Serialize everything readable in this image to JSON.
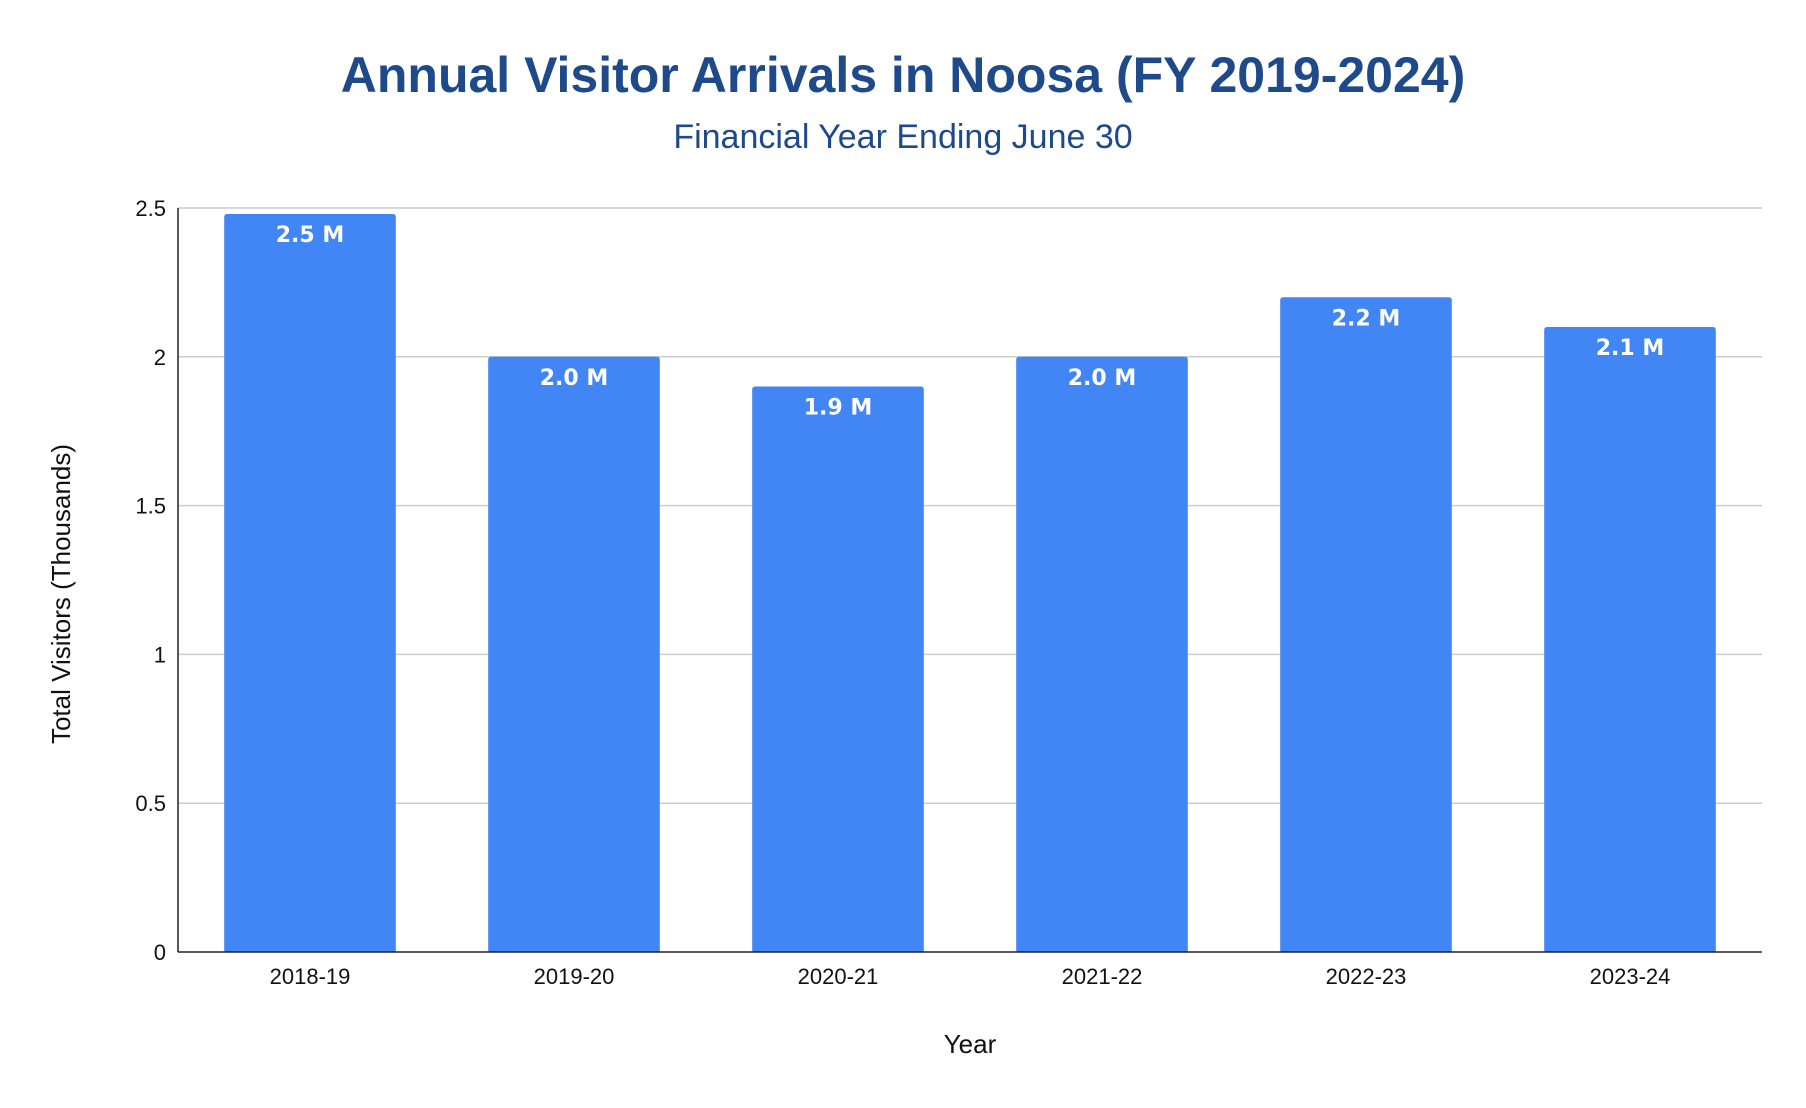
{
  "chart_data": {
    "type": "bar",
    "title": "Annual Visitor Arrivals in Noosa (FY 2019-2024)",
    "subtitle": "Financial Year Ending June 30",
    "xlabel": "Year",
    "ylabel": "Total Visitors (Thousands)",
    "categories": [
      "2018-19",
      "2019-20",
      "2020-21",
      "2021-22",
      "2022-23",
      "2023-24"
    ],
    "values": [
      2.48,
      2.0,
      1.9,
      2.0,
      2.2,
      2.1
    ],
    "data_labels": [
      "2.5 M",
      "2.0 M",
      "1.9 M",
      "2.0 M",
      "2.2 M",
      "2.1 M"
    ],
    "ylim": [
      0,
      2.5
    ],
    "yticks": [
      "0",
      "0.5",
      "1",
      "1.5",
      "2",
      "2.5"
    ],
    "grid": true,
    "legend": "none",
    "colors": {
      "bar": "#4285f4",
      "title": "#1f4a8a",
      "gridline": "#cccccc",
      "axis": "#222222"
    }
  }
}
